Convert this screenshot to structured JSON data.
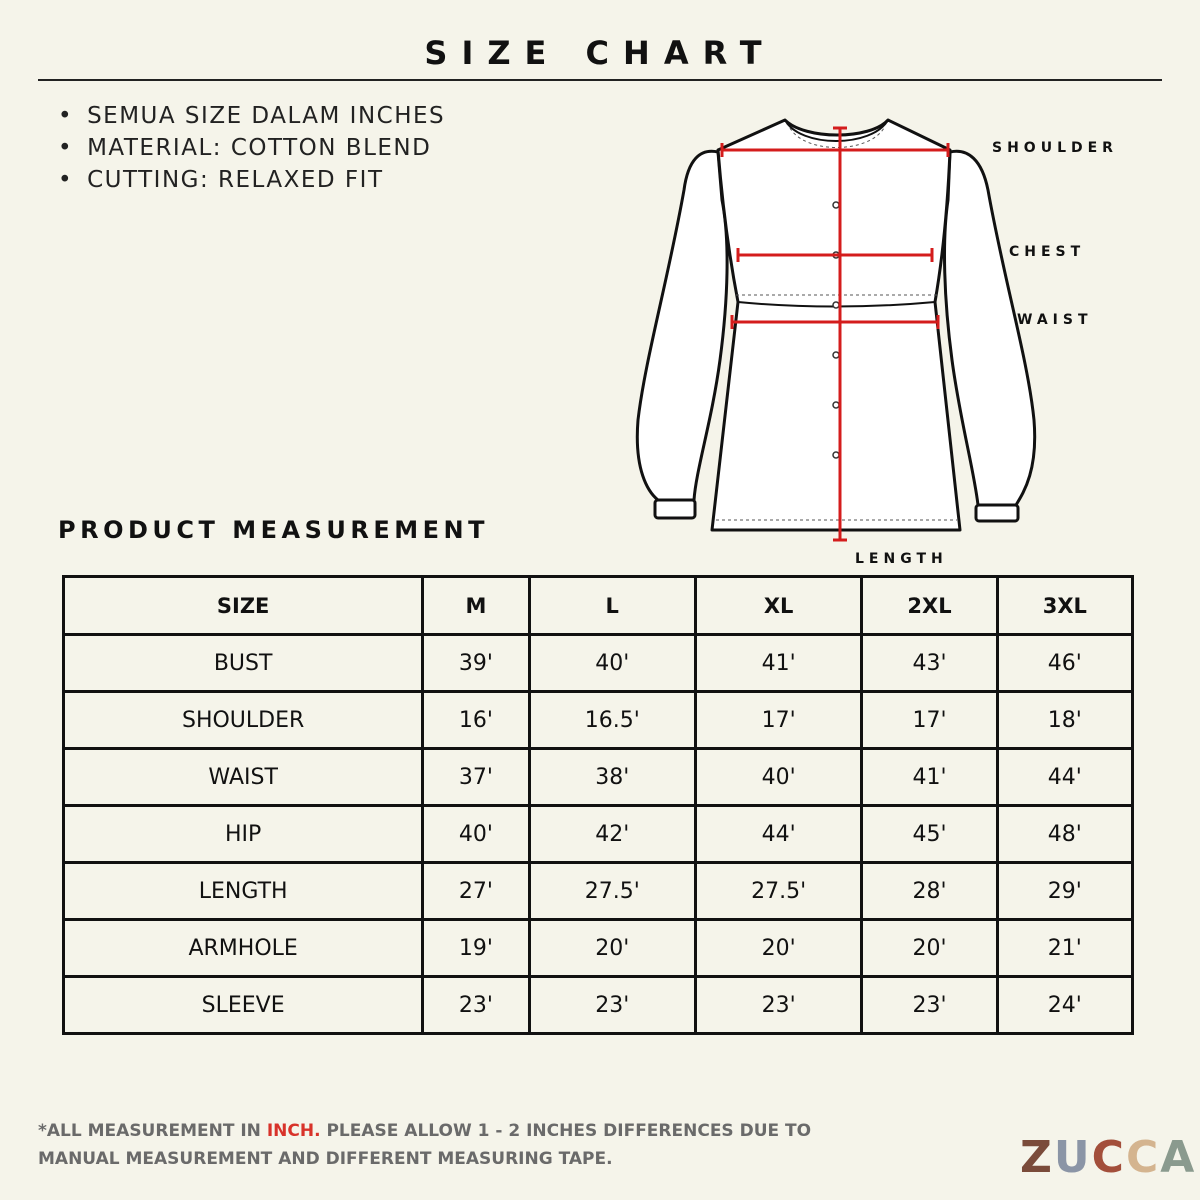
{
  "header": {
    "title": "SIZE CHART"
  },
  "notes": [
    "SEMUA SIZE DALAM INCHES",
    "MATERIAL: COTTON BLEND",
    "CUTTING: RELAXED FIT"
  ],
  "diagram": {
    "shoulder": "SHOULDER",
    "chest": "CHEST",
    "waist": "WAIST",
    "length": "LENGTH"
  },
  "section_title": "PRODUCT MEASUREMENT",
  "table": {
    "header": [
      "SIZE",
      "M",
      "L",
      "XL",
      "2XL",
      "3XL"
    ],
    "rows": [
      [
        "BUST",
        "39'",
        "40'",
        "41'",
        "43'",
        "46'"
      ],
      [
        "SHOULDER",
        "16'",
        "16.5'",
        "17'",
        "17'",
        "18'"
      ],
      [
        "WAIST",
        "37'",
        "38'",
        "40'",
        "41'",
        "44'"
      ],
      [
        "HIP",
        "40'",
        "42'",
        "44'",
        "45'",
        "48'"
      ],
      [
        "LENGTH",
        "27'",
        "27.5'",
        "27.5'",
        "28'",
        "29'"
      ],
      [
        "ARMHOLE",
        "19'",
        "20'",
        "20'",
        "20'",
        "21'"
      ],
      [
        "SLEEVE",
        "23'",
        "23'",
        "23'",
        "23'",
        "24'"
      ]
    ]
  },
  "footer": {
    "prefix": "*ALL MEASUREMENT IN",
    "highlight": "INCH.",
    "suffix": "PLEASE ALLOW 1 - 2 INCHES DIFFERENCES DUE TO MANUAL MEASUREMENT AND DIFFERENT MEASURING TAPE."
  },
  "brand": [
    "Z",
    "U",
    "C",
    "C",
    "A"
  ]
}
